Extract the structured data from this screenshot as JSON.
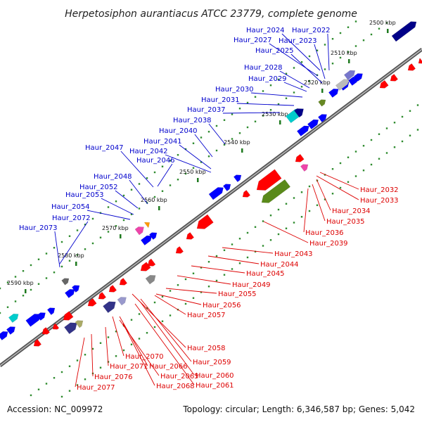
{
  "title": "Herpetosiphon aurantiacus ATCC 23779, complete genome",
  "footer": {
    "accession": "Accession: NC_009972",
    "topology": "Topology: circular; Length: 6,346,587 bp; Genes: 5,042"
  },
  "colors": {
    "forward_label": "#0000cc",
    "reverse_label": "#dd0000",
    "backbone": "#666666",
    "tick_dot": "#2e8b2e",
    "forward_gene": "#0000ff",
    "reverse_gene": "#ff0000"
  },
  "kbp_markers": [
    "2500 kbp",
    "2510 kbp",
    "2520 kbp",
    "2530 kbp",
    "2540 kbp",
    "2550 kbp",
    "2560 kbp",
    "2570 kbp",
    "2580 kbp",
    "2590 kbp"
  ],
  "forward_labels": [
    "Haur_2024",
    "Haur_2022",
    "Haur_2027",
    "Haur_2023",
    "Haur_2025",
    "Haur_2028",
    "Haur_2029",
    "Haur_2030",
    "Haur_2031",
    "Haur_2037",
    "Haur_2038",
    "Haur_2040",
    "Haur_2041",
    "Haur_2047",
    "Haur_2042",
    "Haur_2046",
    "Haur_2048",
    "Haur_2052",
    "Haur_2053",
    "Haur_2054",
    "Haur_2072",
    "Haur_2073"
  ],
  "reverse_labels": [
    "Haur_2032",
    "Haur_2033",
    "Haur_2034",
    "Haur_2035",
    "Haur_2036",
    "Haur_2039",
    "Haur_2043",
    "Haur_2044",
    "Haur_2045",
    "Haur_2049",
    "Haur_2055",
    "Haur_2056",
    "Haur_2057",
    "Haur_2058",
    "Haur_2059",
    "Haur_2060",
    "Haur_2061",
    "Haur_2070",
    "Haur_2071",
    "Haur_2066",
    "Haur_2065",
    "Haur_2068",
    "Haur_2076",
    "Haur_2077"
  ]
}
